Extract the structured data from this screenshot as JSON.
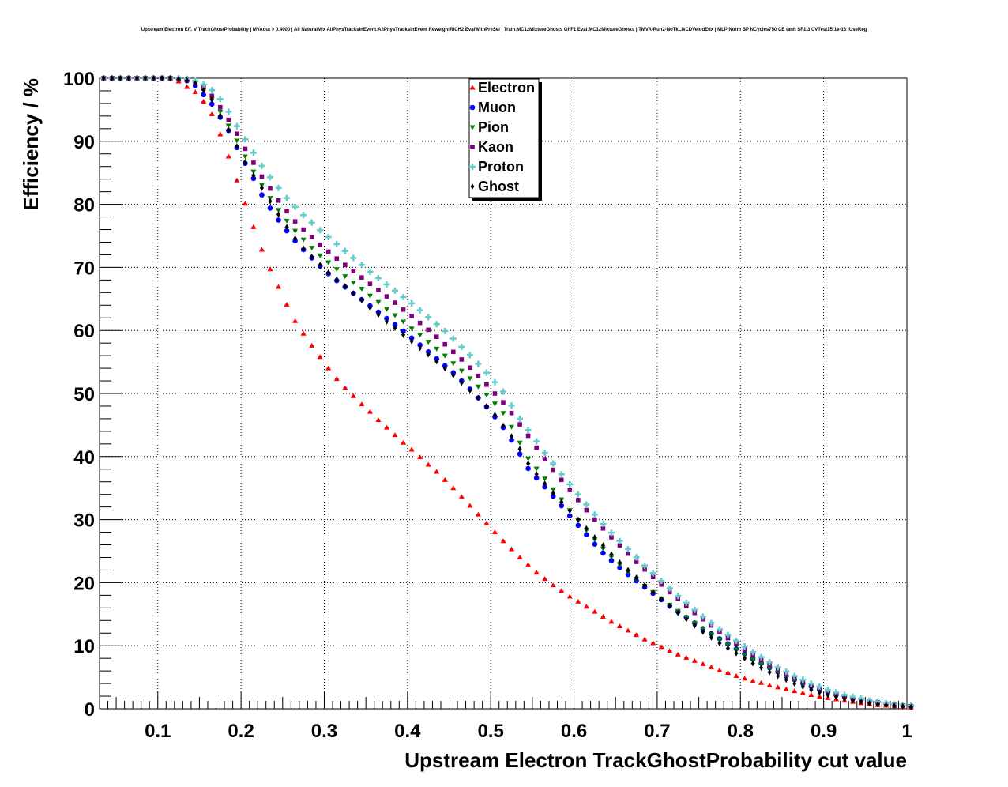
{
  "chart_data": {
    "type": "scatter",
    "title": "Upstream Electron Eff. V TrackGhostProbability | MVAout > 0.4000 | All NaturalMix AllPhysTracksInEvent:AllPhysTracksInEvent ReweightRICH2 EvalWithPreSel | Train:MC12MixtureGhosts GhF1 Eval:MC12MixtureGhosts | TMVA-Run2-NoTkLikCDVelodEdx | MLP Norm BP NCycles750 CE tanh SF1.3 CVTest15:1e-16 !UseReg",
    "xlabel": "Upstream Electron TrackGhostProbability cut value",
    "ylabel": "Efficiency / %",
    "xlim": [
      0.03,
      1.0
    ],
    "ylim": [
      0,
      100
    ],
    "grid": true,
    "legend_position": "top-center",
    "xticks": [
      "0.1",
      "0.2",
      "0.3",
      "0.4",
      "0.5",
      "0.6",
      "0.7",
      "0.8",
      "0.9",
      "1"
    ],
    "yticks": [
      "0",
      "10",
      "20",
      "30",
      "40",
      "50",
      "60",
      "70",
      "80",
      "90",
      "100"
    ],
    "x_start": 0.035,
    "x_step": 0.01,
    "series": [
      {
        "name": "Electron",
        "color": "#ff0000",
        "marker": "triangle-up",
        "values": [
          100,
          100,
          100,
          100,
          100,
          100,
          100,
          100,
          99.9,
          99.5,
          98.6,
          97.8,
          96.3,
          94.3,
          91.1,
          87.6,
          83.8,
          80.1,
          76.4,
          72.8,
          69.7,
          66.9,
          64.1,
          61.5,
          59.5,
          57.6,
          55.8,
          54,
          52.3,
          50.9,
          49.6,
          48.3,
          47.1,
          45.8,
          44.6,
          43.4,
          42.2,
          41.1,
          39.9,
          38.7,
          37.6,
          36.3,
          35,
          33.6,
          32.2,
          30.8,
          29.4,
          28,
          26.6,
          25.3,
          24,
          22.8,
          21.6,
          20.6,
          19.6,
          18.7,
          17.8,
          17,
          16.2,
          15.4,
          14.6,
          13.8,
          13.1,
          12.4,
          11.7,
          11,
          10.4,
          9.8,
          9.2,
          8.6,
          8.1,
          7.6,
          7.1,
          6.6,
          6.1,
          5.7,
          5.2,
          4.8,
          4.4,
          4.1,
          3.7,
          3.4,
          3.1,
          2.8,
          2.5,
          2.2,
          1.9,
          1.7,
          1.5,
          1.3,
          1.1,
          0.9,
          0.8,
          0.6,
          0.5,
          0.4,
          0.3,
          0.2
        ]
      },
      {
        "name": "Muon",
        "color": "#0000ff",
        "marker": "circle",
        "values": [
          100,
          100,
          100,
          100,
          100,
          100,
          100,
          100,
          100,
          99.9,
          99.6,
          98.8,
          97.4,
          95.9,
          93.8,
          91.7,
          89,
          86.5,
          84.1,
          81.5,
          79.4,
          77.5,
          75.8,
          74.2,
          72.8,
          71.5,
          70.2,
          69,
          67.9,
          66.9,
          65.9,
          64.9,
          63.9,
          62.9,
          61.9,
          60.9,
          59.9,
          58.8,
          57.7,
          56.6,
          55.5,
          54.4,
          53.3,
          52,
          50.7,
          49.3,
          47.9,
          46.3,
          44.6,
          42.6,
          40.4,
          38.1,
          36.6,
          35.2,
          33.7,
          32.2,
          30.6,
          29.1,
          27.6,
          26.1,
          24.7,
          23.5,
          22.4,
          21.3,
          20.3,
          19.3,
          18.3,
          17.3,
          16.3,
          15.4,
          14.5,
          13.6,
          12.7,
          11.9,
          11.1,
          10.3,
          9.5,
          8.7,
          7.9,
          7.2,
          6.5,
          5.8,
          5.2,
          4.6,
          4,
          3.5,
          3,
          2.6,
          2.2,
          1.9,
          1.6,
          1.4,
          1.2,
          1,
          0.8,
          0.6,
          0.5,
          0.4
        ]
      },
      {
        "name": "Pion",
        "color": "#008000",
        "marker": "triangle-down",
        "values": [
          100,
          100,
          100,
          100,
          100,
          100,
          100,
          100,
          100,
          99.9,
          99.7,
          99.1,
          98.1,
          96.7,
          94.7,
          92.5,
          90.1,
          87.6,
          85.2,
          83.1,
          81,
          79.1,
          77.4,
          75.8,
          74.4,
          73.1,
          71.9,
          70.8,
          69.7,
          68.6,
          67.6,
          66.6,
          65.5,
          64.5,
          63.4,
          62.4,
          61.4,
          60.3,
          59.3,
          58.2,
          57.1,
          56,
          54.8,
          53.6,
          52.4,
          51.1,
          49.8,
          48.4,
          46.9,
          44.7,
          42.2,
          39.7,
          38.1,
          36.5,
          34.8,
          33.2,
          31.5,
          29.9,
          28.3,
          26.8,
          25.4,
          24.1,
          22.9,
          21.7,
          20.6,
          19.5,
          18.5,
          17.5,
          16.5,
          15.5,
          14.5,
          13.6,
          12.7,
          11.8,
          11,
          10.2,
          9.4,
          8.6,
          7.8,
          7.1,
          6.4,
          5.7,
          5.1,
          4.5,
          3.9,
          3.4,
          2.9,
          2.5,
          2.1,
          1.8,
          1.5,
          1.3,
          1.1,
          0.9,
          0.7,
          0.6,
          0.5,
          0.4
        ]
      },
      {
        "name": "Kaon",
        "color": "#800080",
        "marker": "square",
        "values": [
          100,
          100,
          100,
          100,
          100,
          100,
          100,
          100,
          100,
          99.9,
          99.8,
          99.3,
          98.5,
          97.2,
          95.4,
          93.4,
          91.2,
          88.8,
          86.6,
          84.4,
          82.5,
          80.6,
          78.9,
          77.3,
          76,
          74.8,
          73.6,
          72.5,
          71.4,
          70.4,
          69.4,
          68.4,
          67.4,
          66.4,
          65.4,
          64.4,
          63.3,
          62.3,
          61.2,
          60.1,
          59,
          57.8,
          56.6,
          55.4,
          54.1,
          52.8,
          51.4,
          50,
          48.6,
          46.9,
          45.1,
          43.3,
          41.4,
          39.6,
          37.9,
          36.3,
          34.7,
          33.1,
          31.5,
          30,
          28.6,
          27.2,
          25.9,
          24.6,
          23.3,
          22.1,
          20.9,
          19.7,
          18.5,
          17.4,
          16.3,
          15.2,
          14.2,
          13.2,
          12.2,
          11.2,
          10.3,
          9.4,
          8.5,
          7.7,
          6.9,
          6.2,
          5.5,
          4.9,
          4.3,
          3.7,
          3.2,
          2.8,
          2.4,
          2,
          1.7,
          1.4,
          1.2,
          1,
          0.8,
          0.6,
          0.5,
          0.4
        ]
      },
      {
        "name": "Proton",
        "color": "#66cccc",
        "marker": "cross",
        "values": [
          100,
          100,
          100,
          100,
          100,
          100,
          100,
          100,
          100,
          100,
          99.9,
          99.6,
          99,
          98.1,
          96.7,
          94.7,
          92.4,
          90.3,
          88.2,
          86.1,
          84.3,
          82.6,
          81,
          79.6,
          78.3,
          77.1,
          75.9,
          74.8,
          73.7,
          72.6,
          71.5,
          70.4,
          69.3,
          68.3,
          67.3,
          66.3,
          65.3,
          64.3,
          63.2,
          62.1,
          61,
          59.9,
          58.7,
          57.4,
          56.1,
          54.7,
          53.3,
          51.8,
          50.3,
          48.1,
          46,
          44.2,
          42.4,
          40.6,
          38.9,
          37.2,
          35.6,
          34,
          32.4,
          30.8,
          29.3,
          27.9,
          26.6,
          25.3,
          24,
          22.7,
          21.5,
          20.3,
          19.1,
          17.9,
          16.8,
          15.7,
          14.6,
          13.6,
          12.6,
          11.7,
          10.8,
          9.9,
          9,
          8.2,
          7.4,
          6.6,
          5.9,
          5.2,
          4.6,
          4,
          3.5,
          3,
          2.6,
          2.2,
          1.9,
          1.6,
          1.3,
          1.1,
          0.9,
          0.7,
          0.6,
          0.5
        ]
      },
      {
        "name": "Ghost",
        "color": "#000000",
        "marker": "diamond",
        "values": [
          100,
          100,
          100,
          100,
          100,
          100,
          100,
          100,
          100,
          99.9,
          99.7,
          99.2,
          98.1,
          96.6,
          94.1,
          91.8,
          89.2,
          86.7,
          84.6,
          82.6,
          80.5,
          78.4,
          76.4,
          74.6,
          73,
          71.7,
          70.4,
          69.2,
          68.1,
          67,
          65.9,
          64.8,
          63.6,
          62.5,
          61.4,
          60.4,
          59.3,
          58.3,
          57.2,
          56.2,
          55.1,
          54,
          52.9,
          51.7,
          50.5,
          49.3,
          48,
          46.6,
          44.9,
          43.2,
          41.2,
          38.9,
          37.2,
          35.7,
          34.2,
          32.8,
          31.4,
          30,
          28.6,
          27.2,
          25.9,
          24.5,
          23.2,
          22,
          20.8,
          19.6,
          18.5,
          17.4,
          16.3,
          15.2,
          14.2,
          13.2,
          12.2,
          11.3,
          10.4,
          9.6,
          8.8,
          8,
          7.2,
          6.5,
          5.8,
          5.2,
          4.6,
          4,
          3.5,
          3,
          2.6,
          2.2,
          1.9,
          1.6,
          1.3,
          1.1,
          0.9,
          0.7,
          0.6,
          0.5,
          0.4,
          0.3
        ]
      }
    ]
  }
}
